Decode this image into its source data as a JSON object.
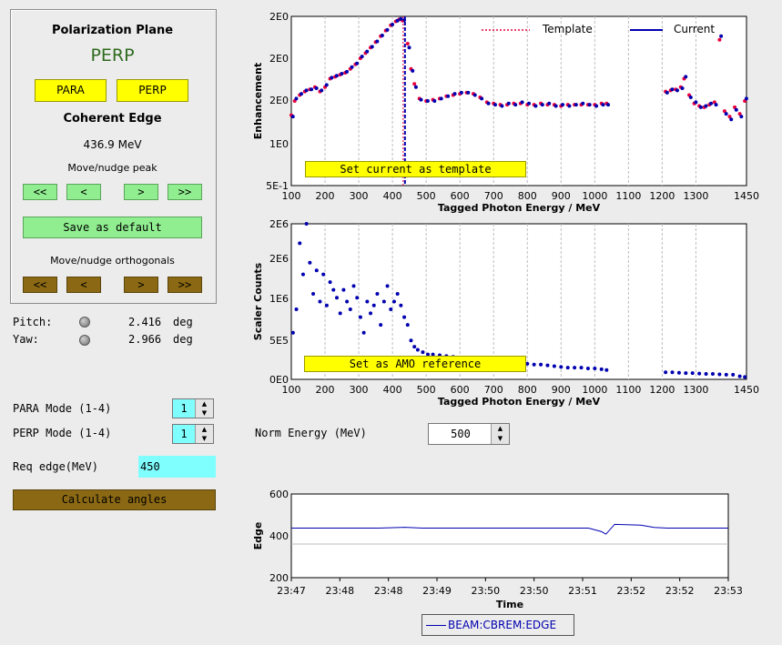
{
  "left_panel": {
    "polarization_title": "Polarization Plane",
    "polarization_value": "PERP",
    "para_button": "PARA",
    "perp_button": "PERP",
    "coherent_edge_title": "Coherent Edge",
    "coherent_edge_value": "436.9 MeV",
    "move_peak_label": "Move/nudge peak",
    "peak_buttons": [
      "<<",
      "<",
      ">",
      ">>"
    ],
    "save_default_button": "Save as default",
    "move_orth_label": "Move/nudge orthogonals",
    "orth_buttons": [
      "<<",
      "<",
      ">",
      ">>"
    ]
  },
  "angles": {
    "pitch_label": "Pitch:",
    "pitch_value": "2.416",
    "pitch_unit": "deg",
    "yaw_label": "Yaw:",
    "yaw_value": "2.966",
    "yaw_unit": "deg"
  },
  "modes": {
    "para_label": "PARA Mode (1-4)",
    "para_value": "1",
    "perp_label": "PERP Mode (1-4)",
    "perp_value": "1",
    "req_edge_label": "Req edge(MeV)",
    "req_edge_value": "450",
    "calculate_button": "Calculate angles",
    "norm_energy_label": "Norm Energy (MeV)",
    "norm_energy_value": "500"
  },
  "colors": {
    "template": "#e8003c",
    "current": "#0000b0",
    "yellow": "#ffff00",
    "green": "#90ee90",
    "brown": "#8b6914",
    "spin": "#80ffff"
  },
  "chart_data": [
    {
      "type": "scatter",
      "ylabel": "Enhancement",
      "xlabel": "Tagged Photon Energy / MeV",
      "x_ticks": [
        "100",
        "200",
        "300",
        "400",
        "500",
        "600",
        "700",
        "800",
        "900",
        "1000",
        "1100",
        "1200",
        "1300",
        "1450"
      ],
      "y_ticks": [
        "5E-1",
        "1E0",
        "2E0",
        "2E0",
        "2E0"
      ],
      "xlim": [
        100,
        1450
      ],
      "ylim": [
        0.5,
        2.0
      ],
      "legend": [
        "Template",
        "Current"
      ],
      "legend_position": "top-right",
      "edge_marker": 437,
      "button": "Set current as template",
      "series": [
        {
          "name": "Template",
          "points": [
            [
              100,
              0.89
            ],
            [
              110,
              1.0
            ],
            [
              125,
              1.05
            ],
            [
              140,
              1.08
            ],
            [
              155,
              1.1
            ],
            [
              170,
              1.12
            ],
            [
              185,
              1.08
            ],
            [
              200,
              1.12
            ],
            [
              215,
              1.2
            ],
            [
              230,
              1.22
            ],
            [
              245,
              1.24
            ],
            [
              260,
              1.26
            ],
            [
              275,
              1.3
            ],
            [
              290,
              1.35
            ],
            [
              305,
              1.42
            ],
            [
              320,
              1.48
            ],
            [
              335,
              1.55
            ],
            [
              350,
              1.62
            ],
            [
              365,
              1.7
            ],
            [
              380,
              1.78
            ],
            [
              395,
              1.86
            ],
            [
              410,
              1.92
            ],
            [
              420,
              1.95
            ],
            [
              430,
              1.93
            ],
            [
              445,
              1.6
            ],
            [
              455,
              1.3
            ],
            [
              465,
              1.15
            ],
            [
              480,
              1.02
            ],
            [
              500,
              1.0
            ],
            [
              520,
              1.01
            ],
            [
              540,
              1.02
            ],
            [
              560,
              1.04
            ],
            [
              580,
              1.05
            ],
            [
              600,
              1.06
            ],
            [
              620,
              1.07
            ],
            [
              640,
              1.06
            ],
            [
              660,
              1.03
            ],
            [
              680,
              0.99
            ],
            [
              700,
              0.98
            ],
            [
              720,
              0.97
            ],
            [
              740,
              0.97
            ],
            [
              760,
              0.98
            ],
            [
              780,
              0.98
            ],
            [
              800,
              0.97
            ],
            [
              820,
              0.97
            ],
            [
              840,
              0.98
            ],
            [
              860,
              0.97
            ],
            [
              880,
              0.97
            ],
            [
              900,
              0.96
            ],
            [
              920,
              0.97
            ],
            [
              940,
              0.97
            ],
            [
              960,
              0.97
            ],
            [
              980,
              0.97
            ],
            [
              1000,
              0.97
            ],
            [
              1020,
              0.98
            ],
            [
              1035,
              0.98
            ],
            [
              1210,
              1.08
            ],
            [
              1225,
              1.09
            ],
            [
              1240,
              1.1
            ],
            [
              1255,
              1.12
            ],
            [
              1265,
              1.2
            ],
            [
              1280,
              1.05
            ],
            [
              1295,
              0.98
            ],
            [
              1310,
              0.96
            ],
            [
              1325,
              0.95
            ],
            [
              1340,
              0.97
            ],
            [
              1355,
              0.99
            ],
            [
              1370,
              1.65
            ],
            [
              1385,
              0.92
            ],
            [
              1400,
              0.88
            ],
            [
              1415,
              0.95
            ],
            [
              1430,
              0.9
            ],
            [
              1445,
              1.0
            ]
          ]
        },
        {
          "name": "Current",
          "points": [
            [
              102,
              0.88
            ],
            [
              112,
              1.02
            ],
            [
              127,
              1.06
            ],
            [
              142,
              1.09
            ],
            [
              157,
              1.1
            ],
            [
              172,
              1.11
            ],
            [
              187,
              1.09
            ],
            [
              202,
              1.14
            ],
            [
              217,
              1.21
            ],
            [
              232,
              1.23
            ],
            [
              247,
              1.25
            ],
            [
              262,
              1.27
            ],
            [
              277,
              1.32
            ],
            [
              292,
              1.36
            ],
            [
              307,
              1.44
            ],
            [
              322,
              1.5
            ],
            [
              337,
              1.56
            ],
            [
              352,
              1.63
            ],
            [
              367,
              1.71
            ],
            [
              382,
              1.79
            ],
            [
              397,
              1.87
            ],
            [
              412,
              1.93
            ],
            [
              422,
              1.96
            ],
            [
              432,
              1.94
            ],
            [
              447,
              1.55
            ],
            [
              457,
              1.28
            ],
            [
              467,
              1.12
            ],
            [
              482,
              1.01
            ],
            [
              502,
              1.0
            ],
            [
              522,
              1.0
            ],
            [
              542,
              1.02
            ],
            [
              562,
              1.04
            ],
            [
              582,
              1.06
            ],
            [
              602,
              1.07
            ],
            [
              622,
              1.07
            ],
            [
              642,
              1.05
            ],
            [
              662,
              1.02
            ],
            [
              682,
              0.98
            ],
            [
              702,
              0.97
            ],
            [
              722,
              0.96
            ],
            [
              742,
              0.98
            ],
            [
              762,
              0.97
            ],
            [
              782,
              0.99
            ],
            [
              802,
              0.98
            ],
            [
              822,
              0.96
            ],
            [
              842,
              0.97
            ],
            [
              862,
              0.98
            ],
            [
              882,
              0.96
            ],
            [
              902,
              0.97
            ],
            [
              922,
              0.96
            ],
            [
              942,
              0.97
            ],
            [
              962,
              0.98
            ],
            [
              982,
              0.97
            ],
            [
              1002,
              0.96
            ],
            [
              1022,
              0.97
            ],
            [
              1037,
              0.97
            ],
            [
              1212,
              1.07
            ],
            [
              1227,
              1.1
            ],
            [
              1242,
              1.09
            ],
            [
              1257,
              1.11
            ],
            [
              1267,
              1.22
            ],
            [
              1282,
              1.03
            ],
            [
              1297,
              0.99
            ],
            [
              1312,
              0.95
            ],
            [
              1327,
              0.96
            ],
            [
              1342,
              0.98
            ],
            [
              1357,
              0.97
            ],
            [
              1372,
              1.7
            ],
            [
              1387,
              0.9
            ],
            [
              1402,
              0.86
            ],
            [
              1417,
              0.93
            ],
            [
              1432,
              0.88
            ],
            [
              1447,
              1.02
            ]
          ]
        }
      ]
    },
    {
      "type": "scatter",
      "ylabel": "Scaler Counts",
      "xlabel": "Tagged Photon Energy / MeV",
      "x_ticks": [
        "100",
        "200",
        "300",
        "400",
        "500",
        "600",
        "700",
        "800",
        "900",
        "1000",
        "1100",
        "1200",
        "1300",
        "1450"
      ],
      "y_ticks": [
        "0E0",
        "5E5",
        "1E6",
        "2E6",
        "2E6"
      ],
      "xlim": [
        100,
        1450
      ],
      "ylim": [
        0,
        2000000
      ],
      "button": "Set as AMO reference",
      "series": [
        {
          "name": "",
          "points": [
            [
              105,
              600000
            ],
            [
              115,
              900000
            ],
            [
              125,
              1750000
            ],
            [
              135,
              1350000
            ],
            [
              145,
              2000000
            ],
            [
              155,
              1500000
            ],
            [
              165,
              1100000
            ],
            [
              175,
              1400000
            ],
            [
              185,
              1000000
            ],
            [
              195,
              1350000
            ],
            [
              205,
              950000
            ],
            [
              215,
              1250000
            ],
            [
              225,
              1150000
            ],
            [
              235,
              1050000
            ],
            [
              245,
              850000
            ],
            [
              255,
              1150000
            ],
            [
              265,
              1000000
            ],
            [
              275,
              900000
            ],
            [
              285,
              1200000
            ],
            [
              295,
              1050000
            ],
            [
              305,
              800000
            ],
            [
              315,
              600000
            ],
            [
              325,
              1000000
            ],
            [
              335,
              850000
            ],
            [
              345,
              950000
            ],
            [
              355,
              1100000
            ],
            [
              365,
              700000
            ],
            [
              375,
              1000000
            ],
            [
              385,
              1200000
            ],
            [
              395,
              900000
            ],
            [
              405,
              1000000
            ],
            [
              415,
              1100000
            ],
            [
              425,
              950000
            ],
            [
              435,
              800000
            ],
            [
              445,
              700000
            ],
            [
              455,
              500000
            ],
            [
              465,
              420000
            ],
            [
              475,
              380000
            ],
            [
              490,
              350000
            ],
            [
              505,
              320000
            ],
            [
              520,
              320000
            ],
            [
              540,
              310000
            ],
            [
              560,
              300000
            ],
            [
              580,
              290000
            ],
            [
              600,
              280000
            ],
            [
              620,
              280000
            ],
            [
              640,
              270000
            ],
            [
              660,
              260000
            ],
            [
              680,
              260000
            ],
            [
              700,
              250000
            ],
            [
              720,
              240000
            ],
            [
              740,
              240000
            ],
            [
              760,
              230000
            ],
            [
              780,
              220000
            ],
            [
              800,
              200000
            ],
            [
              820,
              190000
            ],
            [
              840,
              190000
            ],
            [
              860,
              180000
            ],
            [
              880,
              170000
            ],
            [
              900,
              160000
            ],
            [
              920,
              150000
            ],
            [
              940,
              150000
            ],
            [
              960,
              150000
            ],
            [
              980,
              140000
            ],
            [
              1000,
              140000
            ],
            [
              1020,
              130000
            ],
            [
              1035,
              120000
            ],
            [
              1210,
              90000
            ],
            [
              1230,
              90000
            ],
            [
              1250,
              85000
            ],
            [
              1270,
              80000
            ],
            [
              1290,
              80000
            ],
            [
              1310,
              75000
            ],
            [
              1330,
              70000
            ],
            [
              1350,
              70000
            ],
            [
              1370,
              65000
            ],
            [
              1390,
              60000
            ],
            [
              1410,
              60000
            ],
            [
              1430,
              40000
            ],
            [
              1445,
              30000
            ]
          ]
        }
      ]
    },
    {
      "type": "line",
      "ylabel": "Edge",
      "xlabel": "Time",
      "x_ticks": [
        "23:47",
        "23:48",
        "23:48",
        "23:49",
        "23:50",
        "23:50",
        "23:51",
        "23:52",
        "23:52",
        "23:53"
      ],
      "y_ticks": [
        "200",
        "400",
        "600"
      ],
      "ylim": [
        200,
        600
      ],
      "legend": [
        "BEAM:CBREM:EDGE"
      ],
      "series": [
        {
          "name": "BEAM:CBREM:EDGE",
          "x": [
            0,
            0.2,
            0.26,
            0.3,
            0.5,
            0.68,
            0.71,
            0.72,
            0.74,
            0.8,
            0.83,
            0.86,
            1.0
          ],
          "values": [
            437,
            437,
            441,
            437,
            437,
            437,
            420,
            408,
            455,
            451,
            440,
            437,
            437
          ]
        }
      ]
    }
  ]
}
